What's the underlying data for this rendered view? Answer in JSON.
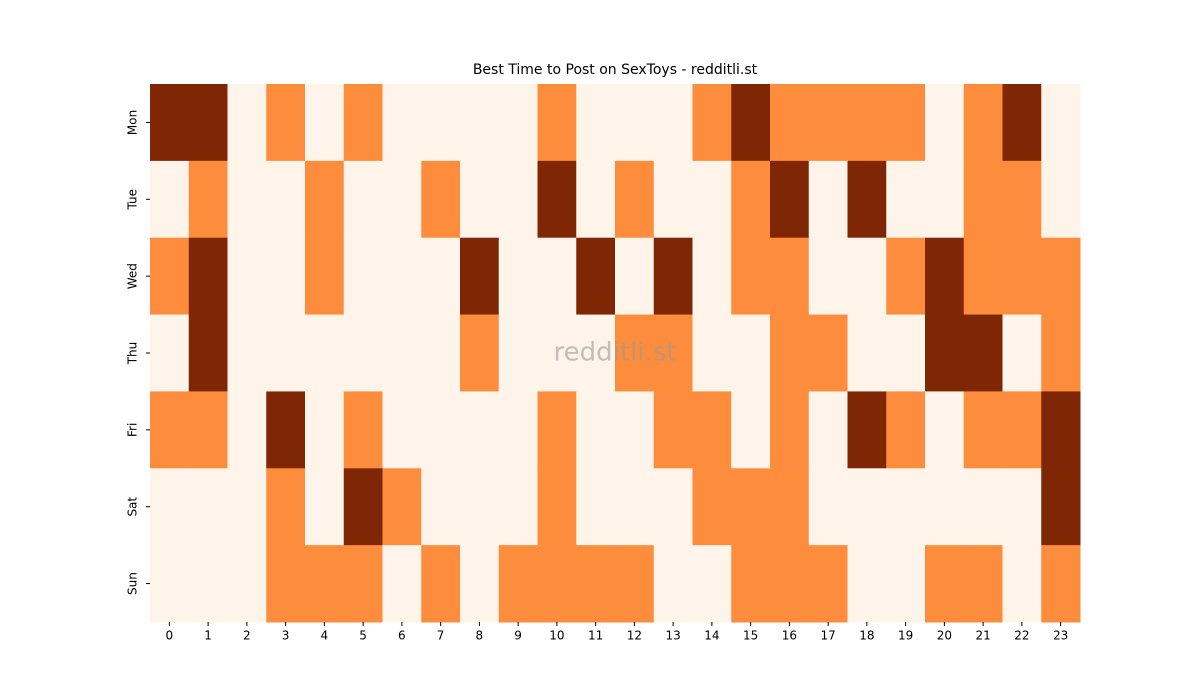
{
  "chart_data": {
    "type": "heatmap",
    "title": "Best Time to Post on SexToys - redditli.st",
    "watermark": "redditli.st",
    "x": [
      0,
      1,
      2,
      3,
      4,
      5,
      6,
      7,
      8,
      9,
      10,
      11,
      12,
      13,
      14,
      15,
      16,
      17,
      18,
      19,
      20,
      21,
      22,
      23
    ],
    "y": [
      "Mon",
      "Tue",
      "Wed",
      "Thu",
      "Fri",
      "Sat",
      "Sun"
    ],
    "values": [
      [
        2,
        2,
        0,
        1,
        0,
        1,
        0,
        0,
        0,
        0,
        1,
        0,
        0,
        0,
        1,
        2,
        1,
        1,
        1,
        1,
        0,
        1,
        2,
        0
      ],
      [
        0,
        1,
        0,
        0,
        1,
        0,
        0,
        1,
        0,
        0,
        2,
        0,
        1,
        0,
        0,
        1,
        2,
        0,
        2,
        0,
        0,
        1,
        1,
        0
      ],
      [
        1,
        2,
        0,
        0,
        1,
        0,
        0,
        0,
        2,
        0,
        0,
        2,
        0,
        2,
        0,
        1,
        1,
        0,
        0,
        1,
        2,
        1,
        1,
        1
      ],
      [
        0,
        2,
        0,
        0,
        0,
        0,
        0,
        0,
        1,
        0,
        0,
        0,
        1,
        1,
        0,
        0,
        1,
        1,
        0,
        0,
        2,
        2,
        0,
        1
      ],
      [
        1,
        1,
        0,
        2,
        0,
        1,
        0,
        0,
        0,
        0,
        1,
        0,
        0,
        1,
        1,
        0,
        1,
        0,
        2,
        1,
        0,
        1,
        1,
        2
      ],
      [
        0,
        0,
        0,
        1,
        0,
        2,
        1,
        0,
        0,
        0,
        1,
        0,
        0,
        0,
        1,
        1,
        1,
        0,
        0,
        0,
        0,
        0,
        0,
        2
      ],
      [
        0,
        0,
        0,
        1,
        1,
        1,
        0,
        1,
        0,
        1,
        1,
        1,
        1,
        0,
        0,
        1,
        1,
        1,
        0,
        0,
        1,
        1,
        0,
        1
      ]
    ],
    "zlim": [
      0,
      2
    ],
    "colormap": [
      "#fef4ea",
      "#fd8d3c",
      "#7f2704"
    ]
  }
}
